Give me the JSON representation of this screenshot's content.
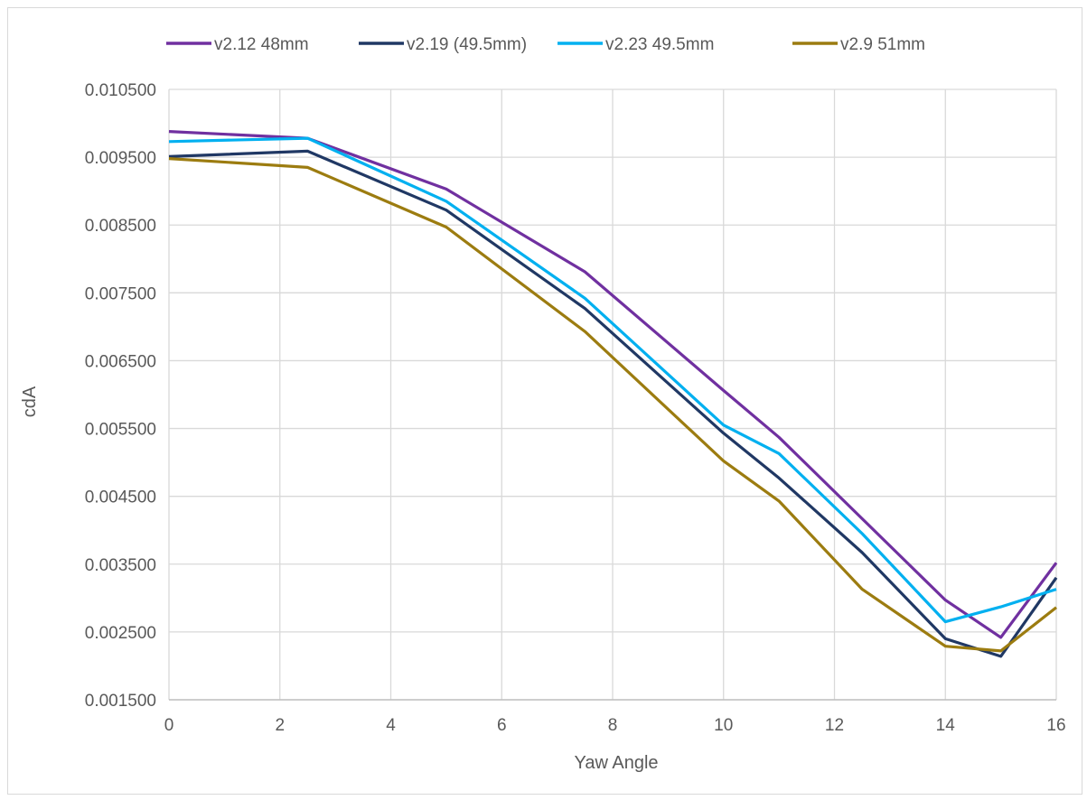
{
  "chart_data": {
    "type": "line",
    "title": "",
    "xlabel": "Yaw Angle",
    "ylabel": "cdA",
    "xlim": [
      0,
      16
    ],
    "ylim": [
      0.0015,
      0.0105
    ],
    "xticks": [
      0,
      2,
      4,
      6,
      8,
      10,
      12,
      14,
      16
    ],
    "yticks": [
      "0.001500",
      "0.002500",
      "0.003500",
      "0.004500",
      "0.005500",
      "0.006500",
      "0.007500",
      "0.008500",
      "0.009500",
      "0.010500"
    ],
    "grid": true,
    "legend_position": "top",
    "x": [
      0,
      2.5,
      5,
      7.5,
      10,
      11,
      12.5,
      14,
      15,
      16
    ],
    "series": [
      {
        "name": "v2.12 48mm",
        "color": "#7030A0",
        "values": [
          0.00988,
          0.00978,
          0.00903,
          0.00781,
          0.00606,
          0.00537,
          0.00417,
          0.00297,
          0.00242,
          0.00352
        ]
      },
      {
        "name": "v2.19 (49.5mm)",
        "color": "#203864",
        "values": [
          0.00951,
          0.00959,
          0.00872,
          0.00727,
          0.00543,
          0.00477,
          0.00367,
          0.0024,
          0.00214,
          0.0033
        ]
      },
      {
        "name": "v2.23 49.5mm",
        "color": "#00B0F0",
        "values": [
          0.00973,
          0.00978,
          0.00885,
          0.00742,
          0.00555,
          0.00513,
          0.00395,
          0.00265,
          0.00287,
          0.00313
        ]
      },
      {
        "name": "v2.9 51mm",
        "color": "#9C7C10",
        "values": [
          0.00948,
          0.00935,
          0.00847,
          0.00693,
          0.00502,
          0.00443,
          0.00313,
          0.00229,
          0.00222,
          0.00286
        ]
      }
    ]
  }
}
